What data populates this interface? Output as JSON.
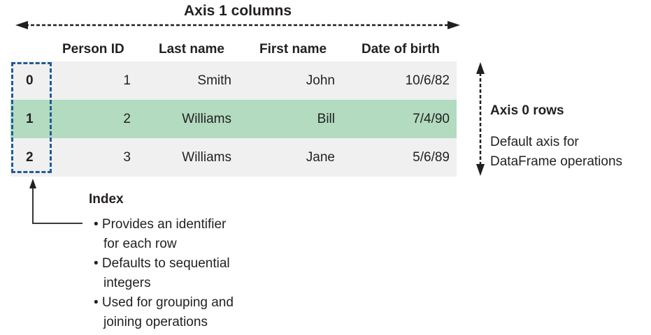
{
  "axis1": {
    "title": "Axis 1 columns"
  },
  "columns": [
    "Person ID",
    "Last name",
    "First name",
    "Date of birth"
  ],
  "rows": [
    {
      "index": "0",
      "person_id": "1",
      "last_name": "Smith",
      "first_name": "John",
      "dob": "10/6/82"
    },
    {
      "index": "1",
      "person_id": "2",
      "last_name": "Williams",
      "first_name": "Bill",
      "dob": "7/4/90"
    },
    {
      "index": "2",
      "person_id": "3",
      "last_name": "Williams",
      "first_name": "Jane",
      "dob": "5/6/89"
    }
  ],
  "index_note": {
    "title": "Index",
    "bullets": [
      {
        "line1": "• Provides an identifier",
        "line2": "for each row"
      },
      {
        "line1": "• Defaults to sequential",
        "line2": "integers"
      },
      {
        "line1": "• Used for grouping and",
        "line2": "joining operations"
      }
    ]
  },
  "axis0": {
    "title": "Axis 0 rows",
    "desc_line1": "Default axis for",
    "desc_line2": "DataFrame operations"
  },
  "colors": {
    "highlight_row": "#b2dbbf",
    "plain_row": "#f0f0f1",
    "index_border": "#1f5c99",
    "text": "#231f20"
  }
}
